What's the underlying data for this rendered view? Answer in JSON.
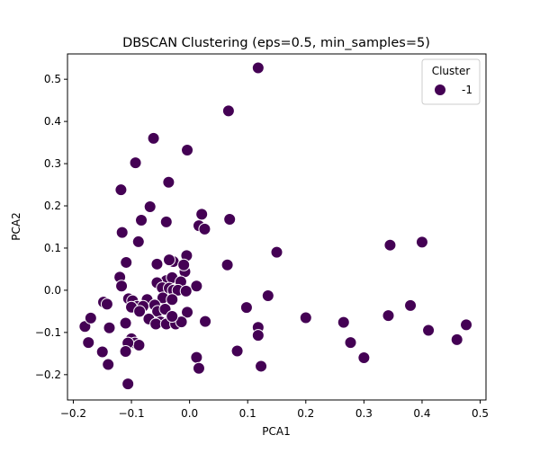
{
  "chart_data": {
    "type": "scatter",
    "title": "DBSCAN Clustering (eps=0.5, min_samples=5)",
    "xlabel": "PCA1",
    "ylabel": "PCA2",
    "xlim": [
      -0.21,
      0.51
    ],
    "ylim": [
      -0.26,
      0.56
    ],
    "xticks": [
      -0.2,
      -0.1,
      0.0,
      0.1,
      0.2,
      0.3,
      0.4,
      0.5
    ],
    "xtick_labels": [
      "−0.2",
      "−0.1",
      "0.0",
      "0.1",
      "0.2",
      "0.3",
      "0.4",
      "0.5"
    ],
    "yticks": [
      -0.2,
      -0.1,
      0.0,
      0.1,
      0.2,
      0.3,
      0.4,
      0.5
    ],
    "ytick_labels": [
      "−0.2",
      "−0.1",
      "0.0",
      "0.1",
      "0.2",
      "0.3",
      "0.4",
      "0.5"
    ],
    "grid": false,
    "legend": {
      "title": "Cluster",
      "placement": "top-right",
      "entries": [
        "-1"
      ]
    },
    "point_color": "#440154",
    "point_edge_color": "#ffffff",
    "series": [
      {
        "name": "-1",
        "points": [
          [
            0.118,
            0.527
          ],
          [
            0.067,
            0.425
          ],
          [
            -0.062,
            0.36
          ],
          [
            -0.004,
            0.332
          ],
          [
            -0.093,
            0.302
          ],
          [
            -0.036,
            0.256
          ],
          [
            -0.118,
            0.238
          ],
          [
            -0.068,
            0.198
          ],
          [
            0.021,
            0.18
          ],
          [
            0.016,
            0.153
          ],
          [
            0.069,
            0.168
          ],
          [
            -0.083,
            0.166
          ],
          [
            -0.04,
            0.162
          ],
          [
            0.026,
            0.145
          ],
          [
            -0.116,
            0.137
          ],
          [
            -0.088,
            0.115
          ],
          [
            0.15,
            0.09
          ],
          [
            -0.028,
            0.068
          ],
          [
            -0.035,
            0.072
          ],
          [
            -0.005,
            0.082
          ],
          [
            -0.056,
            0.062
          ],
          [
            -0.008,
            0.044
          ],
          [
            -0.01,
            0.06
          ],
          [
            -0.109,
            0.066
          ],
          [
            0.065,
            0.06
          ],
          [
            -0.12,
            0.031
          ],
          [
            -0.04,
            0.023
          ],
          [
            -0.03,
            0.03
          ],
          [
            -0.015,
            0.02
          ],
          [
            0.012,
            0.01
          ],
          [
            -0.117,
            0.01
          ],
          [
            -0.056,
            0.018
          ],
          [
            -0.047,
            0.006
          ],
          [
            -0.035,
            0.005
          ],
          [
            -0.028,
            0.0
          ],
          [
            -0.02,
            0.0
          ],
          [
            -0.006,
            -0.002
          ],
          [
            -0.105,
            -0.02
          ],
          [
            -0.098,
            -0.025
          ],
          [
            -0.073,
            -0.022
          ],
          [
            -0.046,
            -0.018
          ],
          [
            -0.03,
            -0.022
          ],
          [
            -0.09,
            -0.038
          ],
          [
            -0.08,
            -0.038
          ],
          [
            -0.06,
            -0.035
          ],
          [
            -0.1,
            -0.04
          ],
          [
            -0.148,
            -0.028
          ],
          [
            -0.142,
            -0.033
          ],
          [
            -0.086,
            -0.05
          ],
          [
            -0.055,
            -0.05
          ],
          [
            -0.042,
            -0.045
          ],
          [
            -0.004,
            -0.052
          ],
          [
            -0.07,
            -0.068
          ],
          [
            -0.05,
            -0.075
          ],
          [
            -0.058,
            -0.08
          ],
          [
            -0.04,
            -0.08
          ],
          [
            -0.024,
            -0.08
          ],
          [
            -0.014,
            -0.075
          ],
          [
            -0.11,
            -0.078
          ],
          [
            -0.18,
            -0.086
          ],
          [
            -0.17,
            -0.066
          ],
          [
            -0.138,
            -0.089
          ],
          [
            -0.03,
            -0.062
          ],
          [
            0.027,
            -0.074
          ],
          [
            0.135,
            -0.013
          ],
          [
            0.098,
            -0.041
          ],
          [
            0.2,
            -0.065
          ],
          [
            0.118,
            -0.088
          ],
          [
            0.118,
            -0.107
          ],
          [
            -0.1,
            -0.115
          ],
          [
            -0.094,
            -0.125
          ],
          [
            -0.087,
            -0.13
          ],
          [
            -0.106,
            -0.125
          ],
          [
            -0.11,
            -0.145
          ],
          [
            -0.174,
            -0.124
          ],
          [
            -0.15,
            -0.146
          ],
          [
            -0.14,
            -0.176
          ],
          [
            -0.106,
            -0.222
          ],
          [
            0.012,
            -0.159
          ],
          [
            0.016,
            -0.185
          ],
          [
            0.082,
            -0.144
          ],
          [
            0.123,
            -0.18
          ],
          [
            0.265,
            -0.076
          ],
          [
            0.277,
            -0.124
          ],
          [
            0.3,
            -0.16
          ],
          [
            0.342,
            -0.06
          ],
          [
            0.38,
            -0.036
          ],
          [
            0.345,
            0.107
          ],
          [
            0.4,
            0.114
          ],
          [
            0.411,
            -0.095
          ],
          [
            0.476,
            -0.082
          ],
          [
            0.46,
            -0.117
          ]
        ]
      }
    ]
  }
}
